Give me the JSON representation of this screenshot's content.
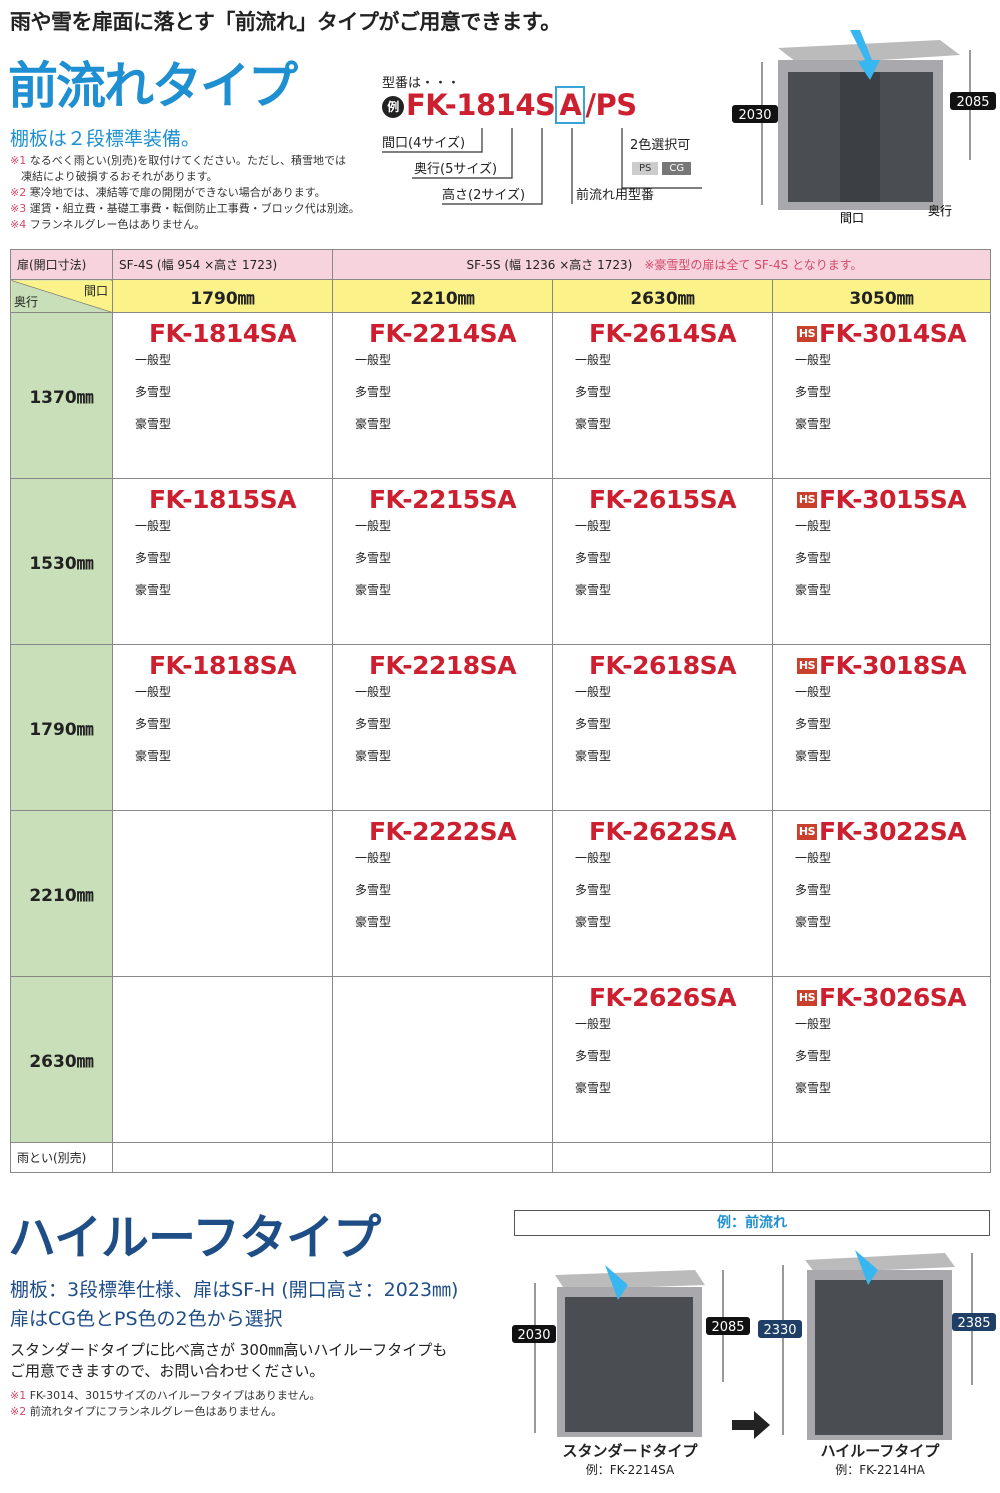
{
  "headline": "雨や雪を扉面に落とす「前流れ」タイプがご用意できます。",
  "section1": {
    "title": "前流れタイプ",
    "subtitle": "棚板は２段標準装備。",
    "notes": [
      {
        "mark": "※1",
        "text": "なるべく雨とい(別売)を取付けてください。ただし、積雪地では"
      },
      {
        "mark": "",
        "text": "　凍結により破損するおそれがあります。"
      },
      {
        "mark": "※2",
        "text": "寒冷地では、凍結等で扉の開閉ができない場合があります。"
      },
      {
        "mark": "※3",
        "text": "運賃・組立費・基礎工事費・転倒防止工事費・ブロック代は別途。"
      },
      {
        "mark": "※4",
        "text": "フランネルグレー色はありません。"
      }
    ]
  },
  "model_number": {
    "intro": "型番は・・・",
    "example_mark": "例",
    "code_main": "FK-1814S",
    "code_a": "A",
    "code_suffix": "/PS",
    "labels": {
      "width": "間口(4サイズ)",
      "depth": "奥行(5サイズ)",
      "height": "高さ(2サイズ)",
      "front_flow": "前流れ用型番",
      "colors": "2色選択可"
    },
    "color_options": [
      "PS",
      "CG"
    ]
  },
  "top_shed": {
    "dims": {
      "front_height": "2030",
      "back_height": "2085",
      "width": "間口",
      "depth": "奥行"
    }
  },
  "table": {
    "door_header": "扉(開口寸法)",
    "door_sf4s": "SF-4S (幅 954 ×高さ 1723)",
    "door_sf5s": "SF-5S (幅 1236 ×高さ 1723)",
    "door_note": "※豪雪型の扉は全て SF-4S となります。",
    "corner_width": "間口",
    "corner_depth": "奥行",
    "widths": [
      "1790㎜",
      "2210㎜",
      "2630㎜",
      "3050㎜"
    ],
    "hs_badge": "HS",
    "types": [
      "一般型",
      "多雪型",
      "豪雪型"
    ],
    "rows": [
      {
        "depth": "1370㎜",
        "models": [
          "FK-1814SA",
          "FK-2214SA",
          "FK-2614SA",
          "FK-3014SA"
        ]
      },
      {
        "depth": "1530㎜",
        "models": [
          "FK-1815SA",
          "FK-2215SA",
          "FK-2615SA",
          "FK-3015SA"
        ]
      },
      {
        "depth": "1790㎜",
        "models": [
          "FK-1818SA",
          "FK-2218SA",
          "FK-2618SA",
          "FK-3018SA"
        ]
      },
      {
        "depth": "2210㎜",
        "models": [
          null,
          "FK-2222SA",
          "FK-2622SA",
          "FK-3022SA"
        ]
      },
      {
        "depth": "2630㎜",
        "models": [
          null,
          null,
          "FK-2626SA",
          "FK-3026SA"
        ]
      }
    ],
    "gutter_row": "雨とい(別売)"
  },
  "section2": {
    "title": "ハイルーフタイプ",
    "subtitle1": "棚板：3段標準仕様、扉はSF-H (開口高さ：2023㎜)",
    "subtitle2": "扉はCG色とPS色の2色から選択",
    "desc1": "スタンダードタイプに比べ高さが 300㎜高いハイルーフタイプも",
    "desc2": "ご用意できますので、お問い合わせください。",
    "notes": [
      {
        "mark": "※1",
        "text": "FK-3014、3015サイズのハイルーフタイプはありません。"
      },
      {
        "mark": "※2",
        "text": "前流れタイプにフランネルグレー色はありません。"
      }
    ],
    "example_header": "例：前流れ",
    "standard": {
      "name": "スタンダードタイプ",
      "example": "例：FK-2214SA",
      "front_height": "2030",
      "back_height": "2085"
    },
    "highroof": {
      "name": "ハイルーフタイプ",
      "example": "例：FK-2214HA",
      "front_height": "2330",
      "back_height": "2385"
    }
  },
  "colors": {
    "title_blue": "#1e8fd0",
    "navy": "#1f4e86",
    "model_red": "#cc1f2f",
    "door_pink": "#f6d3dd",
    "width_yellow": "#fbf38a",
    "depth_green": "#c9dfb9"
  }
}
